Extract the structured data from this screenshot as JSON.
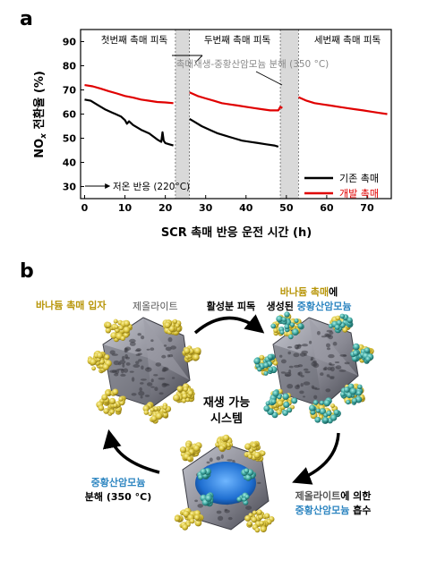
{
  "panel_a": {
    "letter": "a"
  },
  "panel_b": {
    "letter": "b",
    "labels": {
      "vanadium_particle": "바나듐 촉매 입자",
      "zeolite": "제올라이트",
      "active_coating": "활성분 피독",
      "formed_line1_a": "바나듐 촉매",
      "formed_line1_b": "에",
      "formed_line2_a": "생성된 ",
      "formed_line2_b": "중황산암모늄",
      "center_line1": "재생 가능",
      "center_line2": "시스템",
      "zeolite_absorb_a": "제올라이트",
      "zeolite_absorb_b": "에 의한",
      "absorb_line2_a": "중황산암모늄",
      "absorb_line2_b": " 흡수",
      "decomp_line1": "중황산암모늄",
      "decomp_line2": "분해 (350 °C)"
    },
    "colors": {
      "vanadium_text": "#b8960a",
      "ammonium_text": "#2e86c1",
      "zeolite_text": "#555555",
      "particle": "#d8c23a",
      "cluster": "#8a8a94",
      "teal": "#3fa6a0",
      "blue_core": "#1f6fd1"
    }
  },
  "chart_data": {
    "type": "line",
    "xlabel": "SCR 촉매 반응 운전 시간 (h)",
    "ylabel_main": "NO",
    "ylabel_sub": "x",
    "ylabel_rest": " 전환율 (%)",
    "xlim": [
      -1,
      76
    ],
    "ylim": [
      25,
      95
    ],
    "xticks": [
      0,
      10,
      20,
      30,
      40,
      50,
      60,
      70
    ],
    "yticks": [
      30,
      40,
      50,
      60,
      70,
      80,
      90
    ],
    "shaded_regions": [
      [
        22.5,
        26
      ],
      [
        48.5,
        53
      ]
    ],
    "stage_labels": [
      "첫번째 촉매 피독",
      "두번째 촉매 피독",
      "세번째 촉매 피독"
    ],
    "regen_annotation": "촉매재생-중황산암모늄 분해 (350 °C)",
    "low_temp_annotation": "저온 반응 (220°C)",
    "legend_position": "bottom-right",
    "series": [
      {
        "name": "기존 촉매",
        "color": "#000000",
        "segments": [
          [
            [
              0,
              66
            ],
            [
              1.5,
              65.5
            ],
            [
              3,
              64
            ],
            [
              5,
              62
            ],
            [
              7,
              60.5
            ],
            [
              9,
              59
            ],
            [
              10,
              57.5
            ],
            [
              10.5,
              56
            ],
            [
              11,
              57
            ],
            [
              12,
              55.5
            ],
            [
              14,
              53.5
            ],
            [
              16,
              52
            ],
            [
              18,
              49.5
            ],
            [
              19,
              48.5
            ],
            [
              19.3,
              52.5
            ],
            [
              19.6,
              49
            ],
            [
              20,
              48
            ],
            [
              21,
              47.5
            ],
            [
              22,
              47
            ]
          ],
          [
            [
              26,
              58
            ],
            [
              27,
              57
            ],
            [
              29,
              55
            ],
            [
              31,
              53.5
            ],
            [
              33,
              52
            ],
            [
              35,
              51
            ],
            [
              37,
              50
            ],
            [
              39,
              49
            ],
            [
              41,
              48.5
            ],
            [
              43,
              48
            ],
            [
              45,
              47.5
            ],
            [
              47,
              47
            ],
            [
              48,
              46.5
            ]
          ]
        ]
      },
      {
        "name": "개발 촉매",
        "color": "#e00000",
        "segments": [
          [
            [
              0,
              72
            ],
            [
              2,
              71.5
            ],
            [
              4,
              70.5
            ],
            [
              6,
              69.5
            ],
            [
              8,
              68.5
            ],
            [
              10,
              67.5
            ],
            [
              12,
              66.8
            ],
            [
              14,
              66
            ],
            [
              16,
              65.5
            ],
            [
              18,
              65
            ],
            [
              20,
              64.8
            ],
            [
              22,
              64.5
            ]
          ],
          [
            [
              26,
              69
            ],
            [
              28,
              67.5
            ],
            [
              30,
              66.5
            ],
            [
              32,
              65.5
            ],
            [
              34,
              64.5
            ],
            [
              36,
              64
            ],
            [
              38,
              63.5
            ],
            [
              40,
              63
            ],
            [
              42,
              62.5
            ],
            [
              44,
              62
            ],
            [
              46,
              61.5
            ],
            [
              48,
              61.5
            ],
            [
              48.5,
              63
            ],
            [
              49,
              62.5
            ]
          ],
          [
            [
              53,
              67
            ],
            [
              55,
              65.5
            ],
            [
              57,
              64.5
            ],
            [
              59,
              64
            ],
            [
              61,
              63.5
            ],
            [
              63,
              63
            ],
            [
              65,
              62.5
            ],
            [
              67,
              62
            ],
            [
              69,
              61.5
            ],
            [
              71,
              61
            ],
            [
              73,
              60.5
            ],
            [
              75,
              60
            ]
          ]
        ]
      }
    ]
  }
}
